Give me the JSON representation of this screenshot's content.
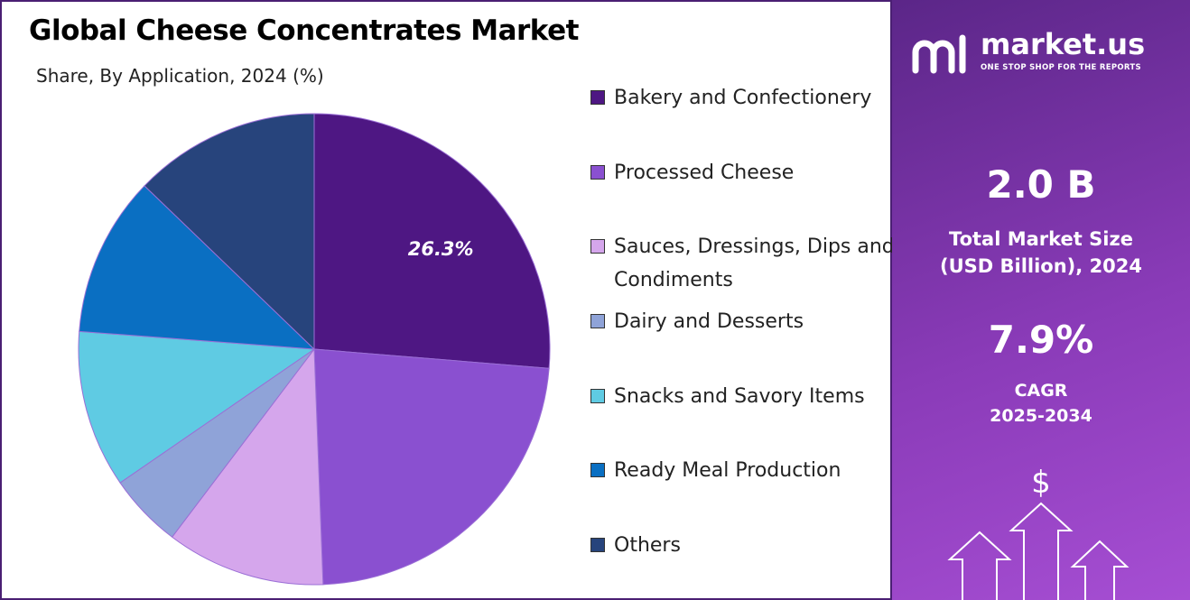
{
  "chart_data": {
    "type": "pie",
    "title": "Global Cheese Concentrates Market",
    "subtitle": "Share, By Application, 2024 (%)",
    "categories": [
      "Bakery and Confectionery",
      "Processed Cheese",
      "Sauces, Dressings, Dips and Condiments",
      "Dairy and Desserts",
      "Snacks and Savory Items",
      "Ready Meal Production",
      "Others"
    ],
    "values": [
      26.3,
      23.1,
      10.9,
      5.1,
      10.8,
      11.0,
      12.8
    ],
    "value_labels": [
      "26.3%",
      null,
      null,
      null,
      null,
      null,
      null
    ],
    "colors": [
      "#4e1783",
      "#8a50d0",
      "#d5a6ec",
      "#8fa3d8",
      "#5fcbe3",
      "#0a6fc2",
      "#27447c"
    ],
    "legend": "right"
  },
  "panel": {
    "brand": "market.us",
    "tagline": "ONE STOP SHOP FOR THE REPORTS",
    "market_size": "2.0 B",
    "market_size_label": "Total Market Size (USD Billion), 2024",
    "cagr": "7.9%",
    "cagr_label": "CAGR",
    "cagr_period": "2025-2034",
    "currency_icon": "$"
  }
}
